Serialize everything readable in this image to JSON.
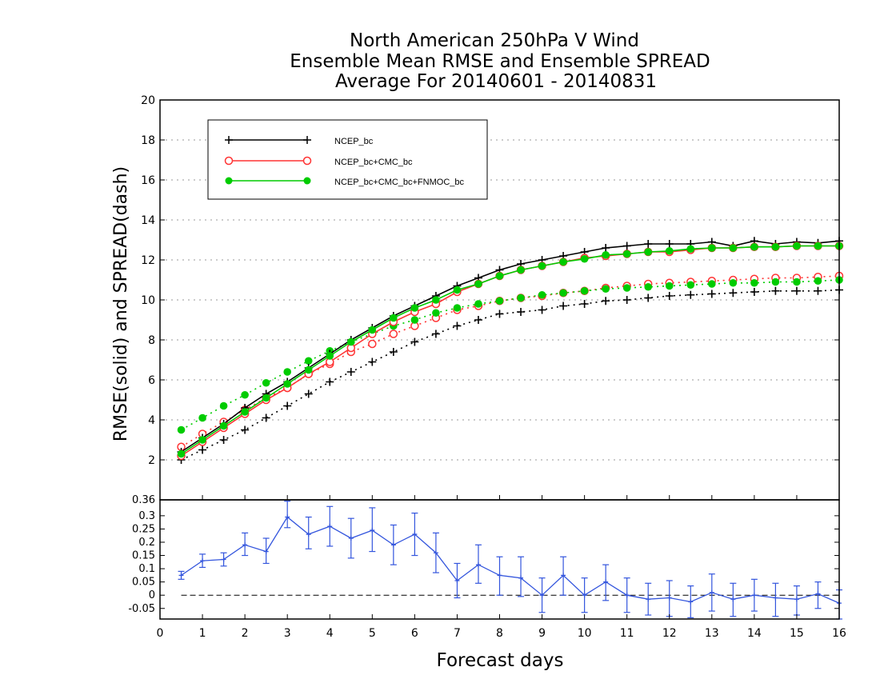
{
  "chart_data": [
    {
      "type": "line",
      "title_lines": [
        "North American 250hPa V Wind",
        "Ensemble Mean RMSE and Ensemble SPREAD",
        "Average For 20140601 - 20140831"
      ],
      "ylabel": "RMSE(solid) and SPREAD(dash)",
      "xlim": [
        0,
        16
      ],
      "ylim": [
        0,
        20
      ],
      "yticks": [
        "2",
        "4",
        "6",
        "8",
        "10",
        "12",
        "14",
        "16",
        "18",
        "20"
      ],
      "grid": "horizontal dotted",
      "legend_position": "top-left",
      "x": [
        0.5,
        1,
        1.5,
        2,
        2.5,
        3,
        3.5,
        4,
        4.5,
        5,
        5.5,
        6,
        6.5,
        7,
        7.5,
        8,
        8.5,
        9,
        9.5,
        10,
        10.5,
        11,
        11.5,
        12,
        12.5,
        13,
        13.5,
        14,
        14.5,
        15,
        15.5,
        16
      ],
      "series": [
        {
          "name": "NCEP_bc",
          "marker": "plus",
          "color": "#000000",
          "rmse": [
            2.4,
            3.1,
            3.8,
            4.6,
            5.3,
            5.9,
            6.6,
            7.3,
            8.0,
            8.6,
            9.2,
            9.7,
            10.2,
            10.7,
            11.1,
            11.5,
            11.8,
            12.0,
            12.2,
            12.4,
            12.6,
            12.7,
            12.8,
            12.8,
            12.8,
            12.9,
            12.7,
            12.95,
            12.8,
            12.9,
            12.85,
            12.95
          ],
          "spread": [
            2.0,
            2.5,
            3.0,
            3.5,
            4.1,
            4.7,
            5.3,
            5.9,
            6.4,
            6.9,
            7.4,
            7.9,
            8.3,
            8.7,
            9.0,
            9.3,
            9.4,
            9.5,
            9.7,
            9.8,
            9.95,
            10.0,
            10.1,
            10.2,
            10.25,
            10.3,
            10.35,
            10.4,
            10.45,
            10.45,
            10.45,
            10.5
          ]
        },
        {
          "name": "NCEP_bc+CMC_bc",
          "marker": "open-circle",
          "color": "#ff3333",
          "rmse": [
            2.2,
            2.9,
            3.6,
            4.3,
            5.0,
            5.6,
            6.3,
            6.9,
            7.6,
            8.3,
            8.9,
            9.4,
            9.8,
            10.4,
            10.8,
            11.2,
            11.5,
            11.7,
            11.9,
            12.1,
            12.2,
            12.3,
            12.4,
            12.4,
            12.5,
            12.6,
            12.6,
            12.65,
            12.65,
            12.7,
            12.7,
            12.7
          ],
          "spread": [
            2.65,
            3.3,
            3.9,
            4.5,
            5.1,
            5.6,
            6.3,
            6.8,
            7.4,
            7.8,
            8.3,
            8.7,
            9.1,
            9.5,
            9.7,
            9.95,
            10.1,
            10.2,
            10.35,
            10.45,
            10.6,
            10.7,
            10.8,
            10.85,
            10.9,
            10.95,
            11.0,
            11.05,
            11.1,
            11.1,
            11.15,
            11.2
          ]
        },
        {
          "name": "NCEP_bc+CMC_bc+FNMOC_bc",
          "marker": "filled-circle",
          "color": "#00cc00",
          "rmse": [
            2.3,
            3.0,
            3.7,
            4.4,
            5.1,
            5.8,
            6.5,
            7.2,
            7.9,
            8.5,
            9.1,
            9.6,
            10.0,
            10.5,
            10.8,
            11.2,
            11.5,
            11.7,
            11.9,
            12.05,
            12.25,
            12.3,
            12.4,
            12.45,
            12.55,
            12.6,
            12.6,
            12.65,
            12.65,
            12.7,
            12.7,
            12.7
          ],
          "spread": [
            3.5,
            4.1,
            4.7,
            5.25,
            5.85,
            6.4,
            6.95,
            7.45,
            7.9,
            8.3,
            8.7,
            9.0,
            9.35,
            9.6,
            9.8,
            9.95,
            10.1,
            10.25,
            10.35,
            10.45,
            10.55,
            10.6,
            10.65,
            10.7,
            10.75,
            10.8,
            10.85,
            10.85,
            10.9,
            10.9,
            10.95,
            11.0
          ]
        }
      ]
    },
    {
      "type": "line-errorbar",
      "xlabel": "Forecast days",
      "xlim": [
        0,
        16
      ],
      "xticks": [
        "0",
        "1",
        "2",
        "3",
        "4",
        "5",
        "6",
        "7",
        "8",
        "9",
        "10",
        "11",
        "12",
        "13",
        "14",
        "15",
        "16"
      ],
      "ylim": [
        -0.09,
        0.36
      ],
      "yticks": [
        "-0.05",
        "0",
        "0.05",
        "0.1",
        "0.15",
        "0.2",
        "0.25",
        "0.3",
        "0.36"
      ],
      "reference_line": 0,
      "color": "#3355dd",
      "x": [
        0.5,
        1,
        1.5,
        2,
        2.5,
        3,
        3.5,
        4,
        4.5,
        5,
        5.5,
        6,
        6.5,
        7,
        7.5,
        8,
        8.5,
        9,
        9.5,
        10,
        10.5,
        11,
        11.5,
        12,
        12.5,
        13,
        13.5,
        14,
        14.5,
        15,
        15.5,
        16
      ],
      "values": [
        0.075,
        0.13,
        0.135,
        0.19,
        0.165,
        0.295,
        0.23,
        0.26,
        0.215,
        0.245,
        0.19,
        0.23,
        0.16,
        0.055,
        0.115,
        0.075,
        0.065,
        0.0,
        0.075,
        0.0,
        0.05,
        0.0,
        -0.015,
        -0.01,
        -0.025,
        0.01,
        -0.015,
        0.0,
        -0.01,
        -0.015,
        0.005,
        -0.03
      ],
      "lower": [
        0.06,
        0.105,
        0.11,
        0.15,
        0.12,
        0.255,
        0.175,
        0.185,
        0.14,
        0.165,
        0.115,
        0.15,
        0.085,
        -0.01,
        0.045,
        0.0,
        -0.005,
        -0.065,
        0.0,
        -0.065,
        -0.02,
        -0.065,
        -0.075,
        -0.08,
        -0.085,
        -0.06,
        -0.08,
        -0.06,
        -0.08,
        -0.075,
        -0.05,
        -0.09
      ],
      "upper": [
        0.09,
        0.155,
        0.16,
        0.235,
        0.215,
        0.355,
        0.295,
        0.335,
        0.29,
        0.33,
        0.265,
        0.31,
        0.235,
        0.12,
        0.19,
        0.145,
        0.145,
        0.065,
        0.145,
        0.065,
        0.115,
        0.065,
        0.045,
        0.055,
        0.035,
        0.08,
        0.045,
        0.06,
        0.045,
        0.035,
        0.05,
        0.02
      ]
    }
  ]
}
